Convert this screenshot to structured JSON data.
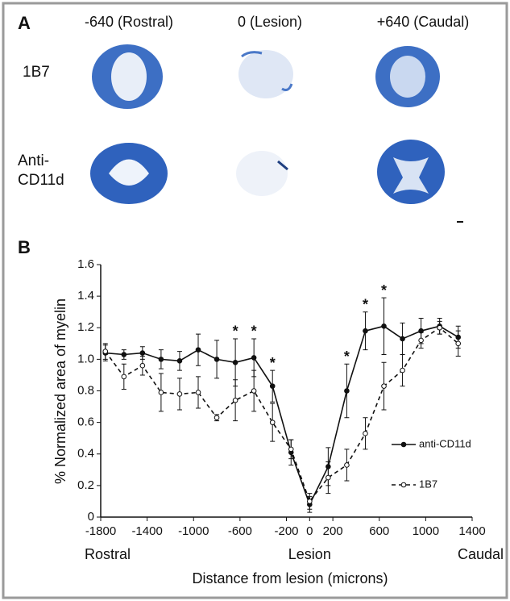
{
  "panel_a": {
    "label": "A",
    "columns": [
      "-640 (Rostral)",
      "0 (Lesion)",
      "+640 (Caudal)"
    ],
    "rows": [
      "1B7",
      "Anti-CD11d"
    ]
  },
  "chart_data": {
    "type": "line",
    "panel_label": "B",
    "x_label": "Distance from lesion (microns)",
    "y_label": "% Normalized area of myelin",
    "x_annotations": [
      "Rostral",
      "Lesion",
      "Caudal"
    ],
    "x": [
      -1760,
      -1600,
      -1440,
      -1280,
      -1120,
      -960,
      -800,
      -640,
      -480,
      -320,
      -160,
      0,
      160,
      320,
      480,
      640,
      800,
      960,
      1120,
      1280
    ],
    "series": [
      {
        "name": "anti-CD11d",
        "color": "#111111",
        "dashed": false,
        "filled": true,
        "values": [
          1.04,
          1.03,
          1.04,
          1.0,
          0.99,
          1.06,
          1.0,
          0.98,
          1.01,
          0.83,
          0.41,
          0.08,
          0.32,
          0.8,
          1.18,
          1.21,
          1.13,
          1.18,
          1.21,
          1.14
        ],
        "errors": [
          0.05,
          0.03,
          0.04,
          0.06,
          0.06,
          0.1,
          0.12,
          0.15,
          0.12,
          0.1,
          0.08,
          0.05,
          0.12,
          0.17,
          0.12,
          0.18,
          0.1,
          0.08,
          0.05,
          0.07
        ]
      },
      {
        "name": "1B7",
        "color": "#111111",
        "dashed": true,
        "filled": false,
        "values": [
          1.05,
          0.89,
          0.96,
          0.79,
          0.78,
          0.79,
          0.63,
          0.74,
          0.8,
          0.6,
          0.43,
          0.1,
          0.25,
          0.33,
          0.53,
          0.83,
          0.93,
          1.12,
          1.2,
          1.1
        ],
        "errors": [
          0.05,
          0.08,
          0.06,
          0.12,
          0.1,
          0.1,
          0.02,
          0.13,
          0.13,
          0.12,
          0.06,
          0.05,
          0.1,
          0.1,
          0.1,
          0.15,
          0.1,
          0.05,
          0.04,
          0.08
        ]
      }
    ],
    "xlim": [
      -1800,
      1400
    ],
    "xticks": [
      -1800,
      -1400,
      -1000,
      -600,
      -200,
      0,
      200,
      600,
      1000,
      1400
    ],
    "ylim": [
      0,
      1.6
    ],
    "yticks": [
      0,
      0.2,
      0.4,
      0.6,
      0.8,
      {
        "value": 1,
        "label": "1.0"
      },
      1.2,
      1.4,
      1.6
    ],
    "legend": "lower right",
    "annotations": [
      {
        "text": "*",
        "x": -640
      },
      {
        "text": "*",
        "x": -480
      },
      {
        "text": "*",
        "x": -320
      },
      {
        "text": "*",
        "x": 320
      },
      {
        "text": "*",
        "x": 480
      },
      {
        "text": "*",
        "x": 640
      }
    ]
  }
}
